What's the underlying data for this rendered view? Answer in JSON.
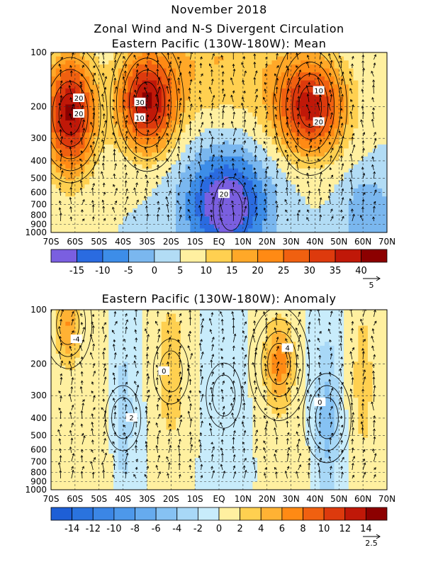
{
  "titles": {
    "date": "November 2018",
    "line1": "Zonal Wind and N-S Divergent Circulation",
    "line2": "Eastern Pacific (130W-180W): Mean",
    "panel2": "Eastern Pacific (130W-180W): Anomaly"
  },
  "chart_data": [
    {
      "type": "heatmap",
      "title": "Eastern Pacific (130W-180W): Mean",
      "x_ticks": [
        "70S",
        "60S",
        "50S",
        "40S",
        "30S",
        "20S",
        "10S",
        "EQ",
        "10N",
        "20N",
        "30N",
        "40N",
        "50N",
        "60N",
        "70N"
      ],
      "x_range": [
        -70,
        70
      ],
      "y_ticks": [
        100,
        200,
        300,
        400,
        500,
        600,
        700,
        800,
        900,
        1000
      ],
      "y_scale": "log",
      "y_range": [
        1000,
        100
      ],
      "contour_labels": [
        "20",
        "30",
        "20",
        "20",
        "20",
        "10",
        "10"
      ],
      "colorbar": {
        "levels": [
          -15,
          -10,
          -5,
          0,
          5,
          10,
          15,
          20,
          25,
          30,
          35,
          40
        ],
        "tick_labels": [
          "-15",
          "-10",
          "-5",
          "0",
          "5",
          "10",
          "15",
          "20",
          "25",
          "30",
          "35",
          "40"
        ],
        "colors": [
          "#7a5fe0",
          "#2a6be0",
          "#3d8de8",
          "#7ab7ef",
          "#b2dcf5",
          "#fff0a0",
          "#ffd050",
          "#ffa828",
          "#ff8a14",
          "#f06010",
          "#dd3a0d",
          "#c01808",
          "#8c0000"
        ]
      },
      "vector_reference": "5",
      "features": [
        {
          "kind": "jet",
          "lat": -62,
          "pressure": 220,
          "value": 35
        },
        {
          "kind": "jet",
          "lat": -30,
          "pressure": 190,
          "value": 33
        },
        {
          "kind": "jet",
          "lat": 38,
          "pressure": 200,
          "value": 32
        },
        {
          "kind": "easterlies",
          "lat": 5,
          "pressure": 750,
          "value": -12
        }
      ],
      "grid": true
    },
    {
      "type": "heatmap",
      "title": "Eastern Pacific (130W-180W): Anomaly",
      "x_ticks": [
        "70S",
        "60S",
        "50S",
        "40S",
        "30S",
        "20S",
        "10S",
        "EQ",
        "10N",
        "20N",
        "30N",
        "40N",
        "50N",
        "60N",
        "70N"
      ],
      "x_range": [
        -70,
        70
      ],
      "y_ticks": [
        100,
        200,
        300,
        400,
        500,
        600,
        700,
        800,
        900,
        1000
      ],
      "y_scale": "log",
      "y_range": [
        1000,
        100
      ],
      "contour_labels": [
        "4",
        "0",
        "-4",
        "0",
        "2"
      ],
      "colorbar": {
        "levels": [
          -14,
          -12,
          -10,
          -8,
          -6,
          -4,
          -2,
          0,
          2,
          4,
          6,
          8,
          10,
          12,
          14
        ],
        "tick_labels": [
          "-14",
          "-12",
          "-10",
          "-8",
          "-6",
          "-4",
          "-2",
          "0",
          "2",
          "4",
          "6",
          "8",
          "10",
          "12",
          "14"
        ],
        "colors": [
          "#1e5fd6",
          "#2a73de",
          "#3b86e5",
          "#4d98ea",
          "#66abee",
          "#86c2f3",
          "#a8d8f7",
          "#c8ecfb",
          "#fff0a0",
          "#ffd050",
          "#ffb234",
          "#ff8a14",
          "#f06010",
          "#dd3a0d",
          "#c01808",
          "#8c0000"
        ]
      },
      "vector_reference": "2.5",
      "features": [
        {
          "kind": "positive",
          "lat": 25,
          "pressure": 200,
          "value": 7
        },
        {
          "kind": "positive",
          "lat": -20,
          "pressure": 220,
          "value": 4
        },
        {
          "kind": "positive",
          "lat": -63,
          "pressure": 120,
          "value": 6
        },
        {
          "kind": "negative",
          "lat": 45,
          "pressure": 400,
          "value": -5
        },
        {
          "kind": "negative",
          "lat": -40,
          "pressure": 400,
          "value": -3
        },
        {
          "kind": "negative",
          "lat": 2,
          "pressure": 300,
          "value": -2
        }
      ],
      "grid": true
    }
  ]
}
